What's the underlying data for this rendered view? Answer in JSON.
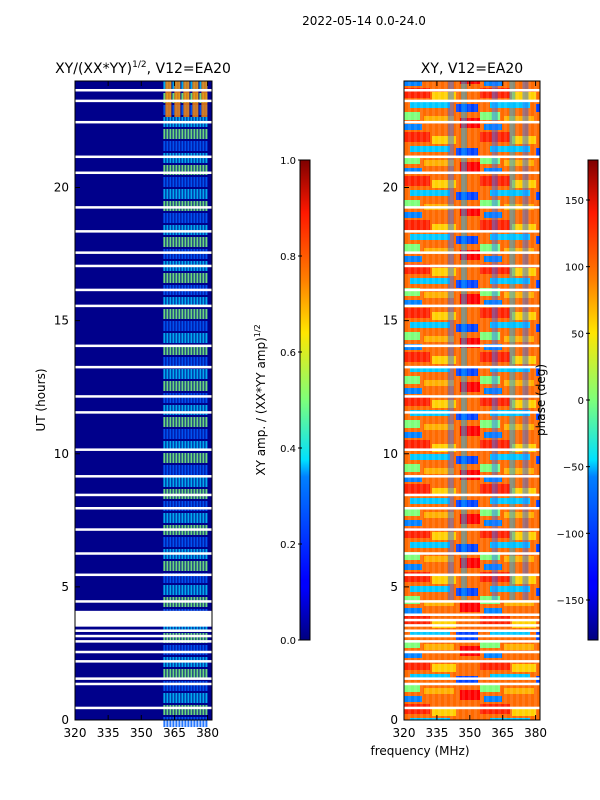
{
  "page": {
    "suptitle": "2022-05-14 0.0-24.0",
    "shared_xlabel": "frequency (MHz)"
  },
  "chart_data": [
    {
      "type": "heatmap",
      "title": "XY/(XX*YY)",
      "title_superscript": "1/2",
      "title_suffix": ", V12=EA20",
      "xlabel": "",
      "ylabel": "UT (hours)",
      "xlim": [
        320,
        382
      ],
      "ylim": [
        0,
        24
      ],
      "xticks": [
        320,
        335,
        350,
        365,
        380
      ],
      "yticks": [
        0,
        5,
        10,
        15,
        20
      ],
      "signal_band_mhz": [
        360,
        380
      ],
      "colorbar": {
        "label": "XY amp. / (XX*YY amp)",
        "label_superscript": "1/2",
        "range": [
          0.0,
          1.0
        ],
        "ticks": [
          "0.0",
          "0.2",
          "0.4",
          "0.6",
          "0.8",
          "1.0"
        ],
        "colormap": "jet"
      }
    },
    {
      "type": "heatmap",
      "title": "XY, V12=EA20",
      "xlabel": "frequency (MHz)",
      "ylabel": "",
      "xlim": [
        320,
        382
      ],
      "ylim": [
        0,
        24
      ],
      "xticks": [
        320,
        335,
        350,
        365,
        380
      ],
      "yticks": [
        0,
        5,
        10,
        15,
        20
      ],
      "colorbar": {
        "label": "phase (deg)",
        "range": [
          -180,
          180
        ],
        "ticks": [
          "−150",
          "−100",
          "−50",
          "0",
          "50",
          "100",
          "150"
        ],
        "tick_values": [
          -150,
          -100,
          -50,
          0,
          50,
          100,
          150
        ],
        "colormap": "jet"
      }
    }
  ],
  "flagged_time_rows_hours": [
    0.5,
    1.4,
    1.6,
    2.25,
    2.6,
    3.0,
    3.2,
    3.4,
    3.6,
    3.8,
    4.0,
    4.5,
    5.5,
    6.3,
    7.2,
    8.0,
    8.5,
    9.2,
    10.2,
    11.6,
    12.2,
    13.3,
    14.1,
    15.6,
    16.2,
    17.1,
    17.6,
    18.4,
    19.3,
    20.6,
    21.2,
    22.5,
    23.3,
    23.7
  ]
}
